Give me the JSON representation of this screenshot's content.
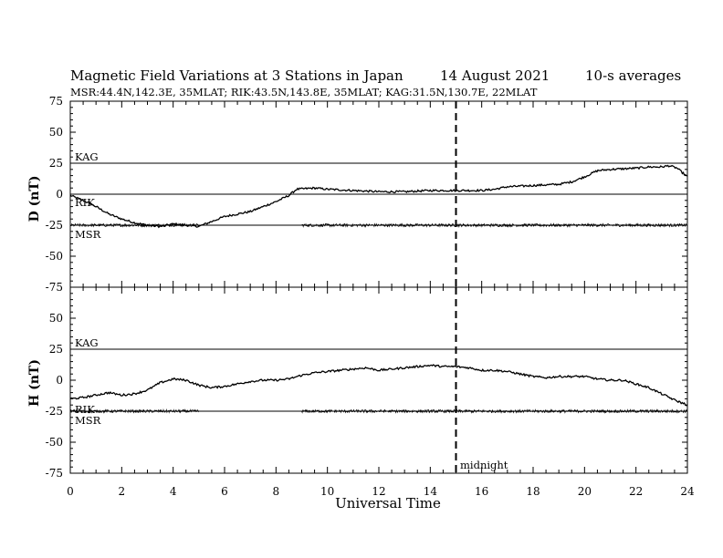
{
  "header": {
    "title": "Magnetic Field Variations at 3 Stations in Japan",
    "date": "14  August  2021",
    "averaging": "10-s averages",
    "stations_line": "MSR:44.4N,142.3E, 35MLAT;  RIK:43.5N,143.8E, 35MLAT;  KAG:31.5N,130.7E, 22MLAT"
  },
  "annotations": {
    "midnight": "midnight"
  },
  "chart_data": [
    {
      "type": "line",
      "panel": "top",
      "ylabel": "D (nT)",
      "xlabel": "",
      "xlim": [
        0,
        24
      ],
      "ylim": [
        -75,
        75
      ],
      "yticks": [
        75,
        50,
        25,
        0,
        -25,
        -50,
        -75
      ],
      "grid": false,
      "baselines": [
        {
          "name": "KAG",
          "y": 25
        },
        {
          "name": "RIK",
          "y": 0
        },
        {
          "name": "MSR",
          "y": -25
        }
      ],
      "vline_x": 15,
      "series": [
        {
          "name": "RIK",
          "kind": "trace",
          "x": [
            0,
            0.5,
            1,
            1.5,
            2,
            2.5,
            3,
            3.5,
            4,
            4.5,
            5,
            5.5,
            6,
            6.5,
            7,
            7.5,
            8,
            8.5,
            8.8,
            9.5,
            10,
            11,
            12,
            13,
            14,
            15,
            16,
            16.5,
            17,
            18,
            19,
            19.5,
            20,
            20.5,
            21,
            22,
            22.5,
            23,
            23.3,
            23.6,
            24
          ],
          "y": [
            -1,
            -5,
            -10,
            -16,
            -20,
            -23,
            -25,
            -26,
            -24,
            -25,
            -26,
            -22,
            -18,
            -16,
            -14,
            -10,
            -6,
            -1,
            4,
            5,
            4,
            3,
            2,
            2,
            3,
            3,
            3,
            4,
            6,
            7,
            8,
            10,
            14,
            19,
            20,
            21,
            22,
            22,
            23,
            21,
            14
          ]
        },
        {
          "name": "MSR",
          "kind": "noise",
          "base": -25,
          "segments": [
            [
              0,
              5
            ],
            [
              9,
              24
            ]
          ]
        }
      ]
    },
    {
      "type": "line",
      "panel": "bottom",
      "ylabel": "H (nT)",
      "xlabel": "Universal Time",
      "xlim": [
        0,
        24
      ],
      "ylim": [
        -75,
        75
      ],
      "yticks": [
        75,
        50,
        25,
        0,
        -25,
        -50,
        -75
      ],
      "xticks": [
        0,
        2,
        4,
        6,
        8,
        10,
        12,
        14,
        16,
        18,
        20,
        22,
        24
      ],
      "grid": false,
      "baselines": [
        {
          "name": "KAG",
          "y": 25
        },
        {
          "name": "RIK",
          "y": -25
        },
        {
          "name": "MSR",
          "y": -25
        }
      ],
      "vline_x": 15,
      "series": [
        {
          "name": "RIK",
          "kind": "trace",
          "x": [
            0,
            0.5,
            1,
            1.5,
            2,
            2.5,
            3,
            3.5,
            4,
            4.5,
            5,
            5.5,
            6,
            6.5,
            7,
            7.5,
            8,
            8.5,
            9,
            9.5,
            10,
            10.5,
            11,
            11.5,
            12,
            12.5,
            13,
            13.5,
            14,
            14.5,
            15,
            15.5,
            16,
            16.5,
            17,
            17.5,
            18,
            18.5,
            19,
            19.5,
            20,
            20.5,
            21,
            21.5,
            22,
            22.5,
            23,
            23.5,
            24
          ],
          "y": [
            -15,
            -14,
            -12,
            -10,
            -12,
            -11,
            -8,
            -2,
            1,
            0,
            -4,
            -6,
            -5,
            -3,
            -1,
            0,
            0,
            1,
            4,
            6,
            7,
            8,
            9,
            10,
            8,
            9,
            10,
            11,
            12,
            11,
            11,
            10,
            8,
            8,
            7,
            5,
            3,
            2,
            3,
            3,
            3,
            1,
            0,
            0,
            -3,
            -6,
            -11,
            -16,
            -20
          ]
        },
        {
          "name": "MSR",
          "kind": "noise",
          "base": -25,
          "segments": [
            [
              0,
              5
            ],
            [
              9,
              24
            ]
          ]
        }
      ]
    }
  ]
}
